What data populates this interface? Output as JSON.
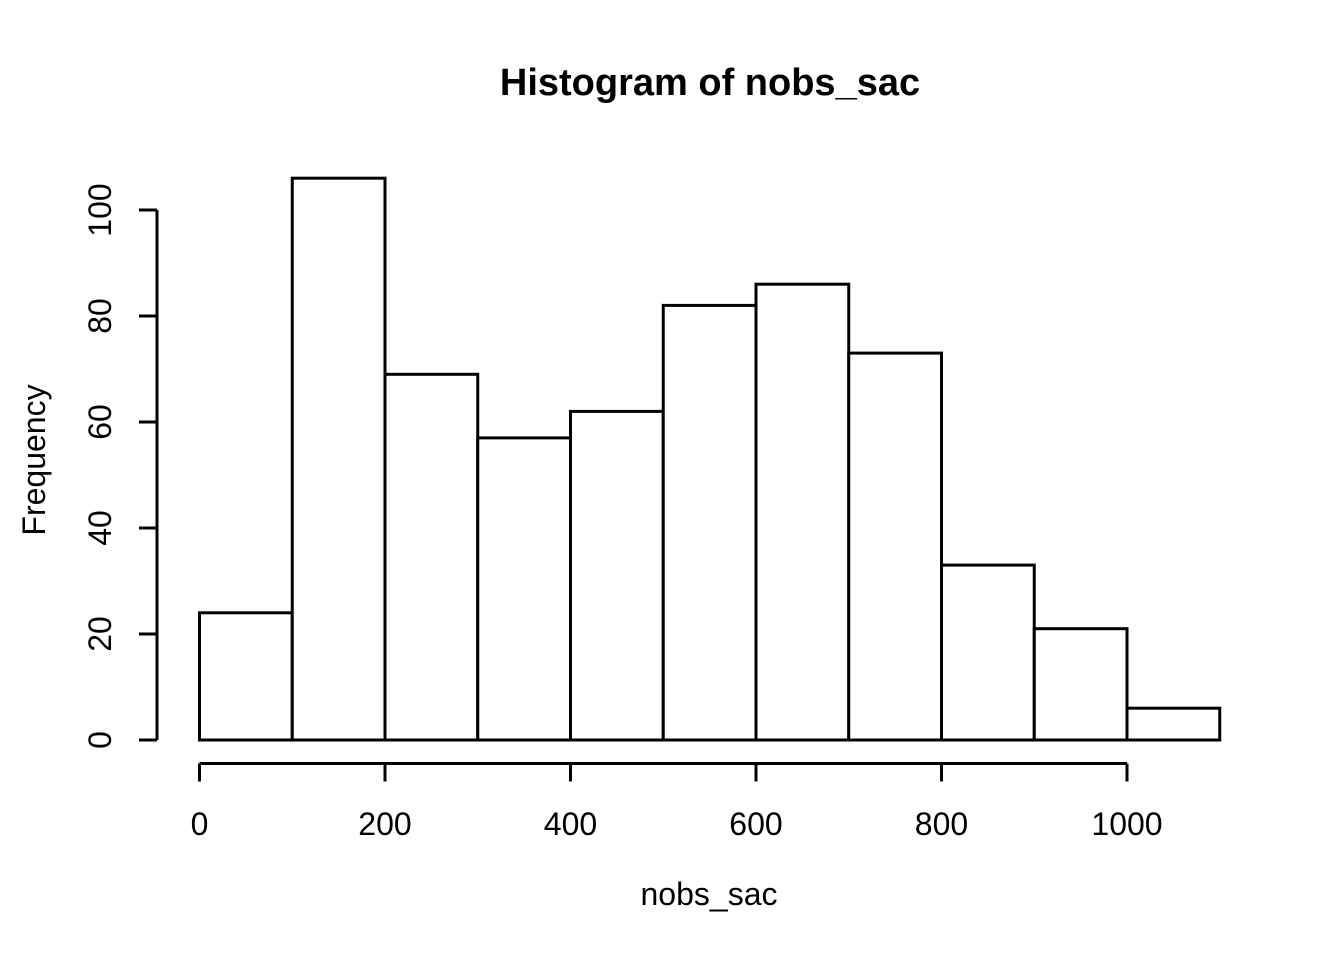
{
  "chart_data": {
    "type": "bar",
    "chart_kind": "histogram",
    "title": "Histogram of nobs_sac",
    "xlabel": "nobs_sac",
    "ylabel": "Frequency",
    "bin_edges": [
      0,
      100,
      200,
      300,
      400,
      500,
      600,
      700,
      800,
      900,
      1000,
      1100
    ],
    "values": [
      24,
      106,
      69,
      57,
      62,
      82,
      86,
      73,
      33,
      21,
      6
    ],
    "x_ticks": [
      0,
      200,
      400,
      600,
      800,
      1000
    ],
    "y_ticks": [
      0,
      20,
      40,
      60,
      80,
      100
    ],
    "xlim": [
      0,
      1100
    ],
    "ylim": [
      0,
      106
    ],
    "grid": false,
    "legend": null,
    "colors": {
      "background": "#ffffff",
      "bar_fill": "#ffffff",
      "bar_stroke": "#000000",
      "axis": "#000000",
      "text": "#000000"
    }
  }
}
